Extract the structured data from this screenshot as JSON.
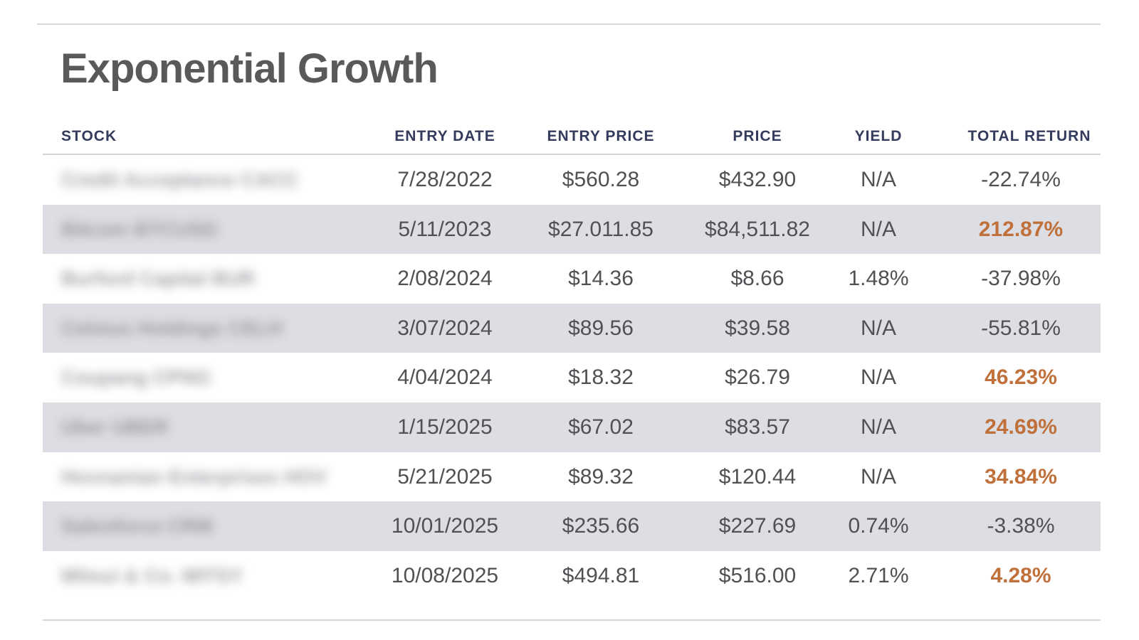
{
  "title": "Exponential Growth",
  "colors": {
    "header_text": "#343b5c",
    "body_text": "#505154",
    "alt_row_bg": "#dddee3",
    "positive_return": "#c0703a",
    "rule": "#d8d8da"
  },
  "columns": {
    "stock": "STOCK",
    "entry_date": "ENTRY DATE",
    "entry_price": "ENTRY PRICE",
    "price": "PRICE",
    "yield": "YIELD",
    "total_return": "TOTAL RETURN"
  },
  "rows": [
    {
      "stock": "Credit Acceptance CACC",
      "entry_date": "7/28/2022",
      "entry_price": "$560.28",
      "price": "$432.90",
      "yield": "N/A",
      "total_return": "-22.74%",
      "positive": false
    },
    {
      "stock": "Bitcoin BTCUSD",
      "entry_date": "5/11/2023",
      "entry_price": "$27.011.85",
      "price": "$84,511.82",
      "yield": "N/A",
      "total_return": "212.87%",
      "positive": true
    },
    {
      "stock": "Burford Capital BUR",
      "entry_date": "2/08/2024",
      "entry_price": "$14.36",
      "price": "$8.66",
      "yield": "1.48%",
      "total_return": "-37.98%",
      "positive": false
    },
    {
      "stock": "Celsius Holdings CELH",
      "entry_date": "3/07/2024",
      "entry_price": "$89.56",
      "price": "$39.58",
      "yield": "N/A",
      "total_return": "-55.81%",
      "positive": false
    },
    {
      "stock": "Coupang CPNG",
      "entry_date": "4/04/2024",
      "entry_price": "$18.32",
      "price": "$26.79",
      "yield": "N/A",
      "total_return": "46.23%",
      "positive": true
    },
    {
      "stock": "Uber UBER",
      "entry_date": "1/15/2025",
      "entry_price": "$67.02",
      "price": "$83.57",
      "yield": "N/A",
      "total_return": "24.69%",
      "positive": true
    },
    {
      "stock": "Hovnanian Enterprises HOV",
      "entry_date": "5/21/2025",
      "entry_price": "$89.32",
      "price": "$120.44",
      "yield": "N/A",
      "total_return": "34.84%",
      "positive": true
    },
    {
      "stock": "Salesforce CRM",
      "entry_date": "10/01/2025",
      "entry_price": "$235.66",
      "price": "$227.69",
      "yield": "0.74%",
      "total_return": "-3.38%",
      "positive": false
    },
    {
      "stock": "Mitsui & Co. MITSY",
      "entry_date": "10/08/2025",
      "entry_price": "$494.81",
      "price": "$516.00",
      "yield": "2.71%",
      "total_return": "4.28%",
      "positive": true
    }
  ]
}
